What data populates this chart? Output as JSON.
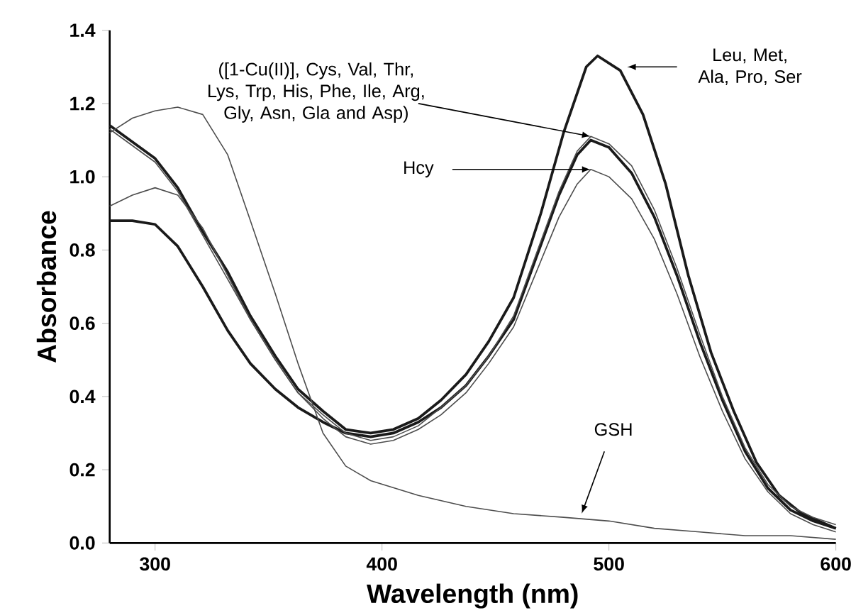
{
  "chart_data": {
    "type": "line",
    "xlabel": "Wavelength (nm)",
    "ylabel": "Absorbance",
    "xlim": [
      280,
      600
    ],
    "xticks": [
      300,
      400,
      500,
      600
    ],
    "ylim": [
      0,
      1.4
    ],
    "yticks": [
      {
        "value": 0,
        "label": "0.0"
      },
      0.2,
      0.4,
      0.6,
      0.8,
      {
        "value": 1,
        "label": "1.0"
      },
      1.2,
      1.4
    ],
    "series": [
      {
        "color": "#1a1a1a",
        "x": [
          280,
          300,
          310,
          321,
          332,
          342,
          353,
          363,
          374,
          384,
          395,
          405,
          416,
          426,
          437,
          447,
          458,
          470,
          480,
          490,
          495,
          505,
          515,
          525,
          535,
          545,
          555,
          565,
          575,
          585,
          600
        ],
        "values": [
          1.14,
          1.05,
          0.97,
          0.85,
          0.74,
          0.62,
          0.51,
          0.42,
          0.36,
          0.31,
          0.3,
          0.31,
          0.34,
          0.39,
          0.46,
          0.55,
          0.67,
          0.9,
          1.12,
          1.3,
          1.33,
          1.29,
          1.17,
          0.98,
          0.73,
          0.52,
          0.36,
          0.22,
          0.13,
          0.08,
          0.04
        ]
      },
      {
        "color": "#1a1a1a",
        "x": [
          280,
          290,
          300,
          310,
          321,
          332,
          342,
          353,
          363,
          374,
          384,
          395,
          405,
          416,
          426,
          437,
          447,
          458,
          468,
          478,
          486,
          492,
          500,
          510,
          520,
          530,
          540,
          550,
          560,
          570,
          580,
          590,
          600
        ],
        "values": [
          0.88,
          0.88,
          0.87,
          0.81,
          0.7,
          0.58,
          0.49,
          0.42,
          0.37,
          0.33,
          0.3,
          0.29,
          0.3,
          0.33,
          0.37,
          0.43,
          0.51,
          0.61,
          0.78,
          0.95,
          1.06,
          1.1,
          1.08,
          1.01,
          0.89,
          0.73,
          0.55,
          0.39,
          0.25,
          0.15,
          0.09,
          0.06,
          0.04
        ]
      },
      {
        "color": "#4d4d4d",
        "x": [
          280,
          300,
          310,
          321,
          332,
          342,
          353,
          363,
          374,
          384,
          395,
          405,
          416,
          426,
          437,
          447,
          458,
          468,
          478,
          486,
          492,
          500,
          510,
          520,
          530,
          540,
          550,
          560,
          570,
          580,
          590,
          600
        ],
        "values": [
          1.13,
          1.04,
          0.96,
          0.84,
          0.72,
          0.61,
          0.5,
          0.41,
          0.35,
          0.3,
          0.28,
          0.29,
          0.32,
          0.37,
          0.43,
          0.51,
          0.62,
          0.79,
          0.96,
          1.07,
          1.11,
          1.09,
          1.03,
          0.91,
          0.75,
          0.57,
          0.4,
          0.26,
          0.16,
          0.1,
          0.07,
          0.05
        ]
      },
      {
        "color": "#4d4d4d",
        "x": [
          280,
          290,
          300,
          310,
          321,
          332,
          342,
          353,
          363,
          374,
          384,
          395,
          405,
          416,
          426,
          437,
          447,
          458,
          468,
          478,
          486,
          492,
          500,
          510,
          520,
          530,
          540,
          550,
          560,
          570,
          580,
          590,
          600
        ],
        "values": [
          0.92,
          0.95,
          0.97,
          0.95,
          0.86,
          0.73,
          0.61,
          0.5,
          0.41,
          0.34,
          0.29,
          0.27,
          0.28,
          0.31,
          0.35,
          0.41,
          0.49,
          0.59,
          0.74,
          0.89,
          0.98,
          1.02,
          1.0,
          0.94,
          0.83,
          0.68,
          0.51,
          0.36,
          0.23,
          0.14,
          0.08,
          0.05,
          0.03
        ]
      },
      {
        "color": "#4d4d4d",
        "x": [
          280,
          290,
          300,
          310,
          321,
          332,
          342,
          353,
          363,
          374,
          384,
          395,
          416,
          437,
          458,
          480,
          500,
          520,
          540,
          560,
          580,
          600
        ],
        "values": [
          1.12,
          1.16,
          1.18,
          1.19,
          1.17,
          1.06,
          0.88,
          0.68,
          0.49,
          0.3,
          0.21,
          0.17,
          0.13,
          0.1,
          0.08,
          0.07,
          0.06,
          0.04,
          0.03,
          0.02,
          0.02,
          0.01
        ]
      }
    ],
    "annotations": [
      {
        "text": "Leu, Met, Ala, Pro, Ser",
        "x": 508,
        "y": 1.3
      },
      {
        "text": "([1-Cu(II)], Cys, Val, Thr, Lys, Trp, His, Phe, Ile, Arg, Gly, Asn, Gla and Asp)",
        "x": 492,
        "y": 1.11
      },
      {
        "text": "Hcy",
        "x": 492,
        "y": 1.02
      },
      {
        "text": "GSH",
        "x": 488,
        "y": 0.08
      }
    ]
  }
}
